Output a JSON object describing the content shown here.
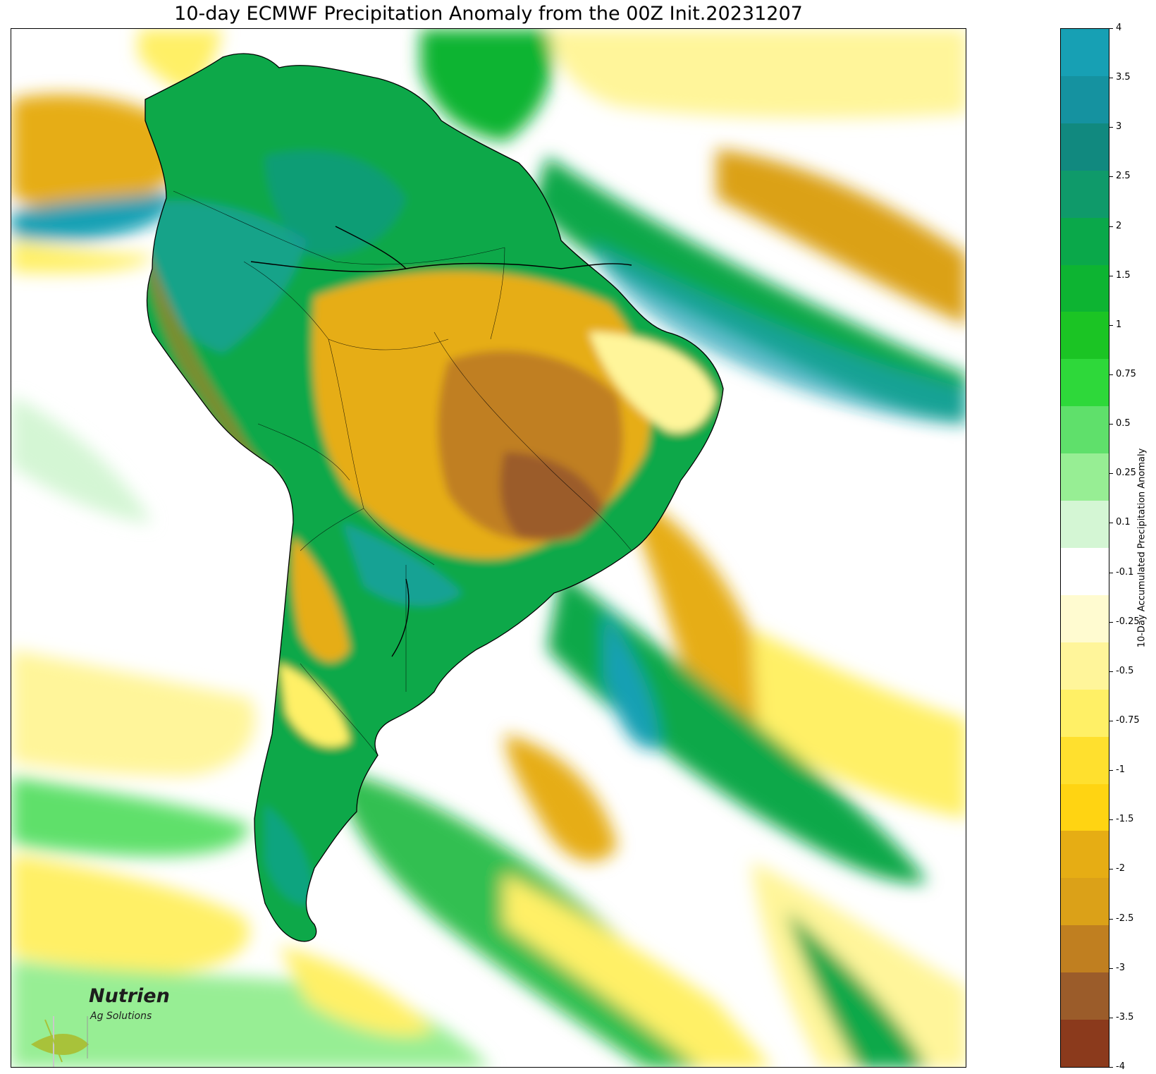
{
  "title": "10-day ECMWF Precipitation Anomaly from the 00Z Init.20231207",
  "colorbar": {
    "label": "10-Day Accumulated Precipitation Anomaly",
    "ticks": [
      "4",
      "3.5",
      "3",
      "2.5",
      "2",
      "1.5",
      "1",
      "0.75",
      "0.5",
      "0.25",
      "0.1",
      "-0.1",
      "-0.25",
      "-0.5",
      "-0.75",
      "-1",
      "-1.5",
      "-2",
      "-2.5",
      "-3",
      "-3.5",
      "-4"
    ],
    "colors_top_to_bottom": [
      "#17a0b4",
      "#1592a0",
      "#11897f",
      "#0f9a6a",
      "#0aa84a",
      "#0db432",
      "#1bc424",
      "#2ed83a",
      "#5fe06b",
      "#97ee94",
      "#d4f6d4",
      "#ffffff",
      "#fffbd0",
      "#fff59a",
      "#fff066",
      "#ffe02e",
      "#ffd412",
      "#e6ad14",
      "#dba118",
      "#c07f20",
      "#9b5c2a",
      "#8b3a1c"
    ]
  },
  "logo": {
    "icon": "nutrien-leaf-icon",
    "name": "Nutrien",
    "subtitle": "Ag Solutions"
  },
  "map": {
    "region": "South America",
    "land_color": "#ffffff",
    "boundary_color": "#000000"
  }
}
